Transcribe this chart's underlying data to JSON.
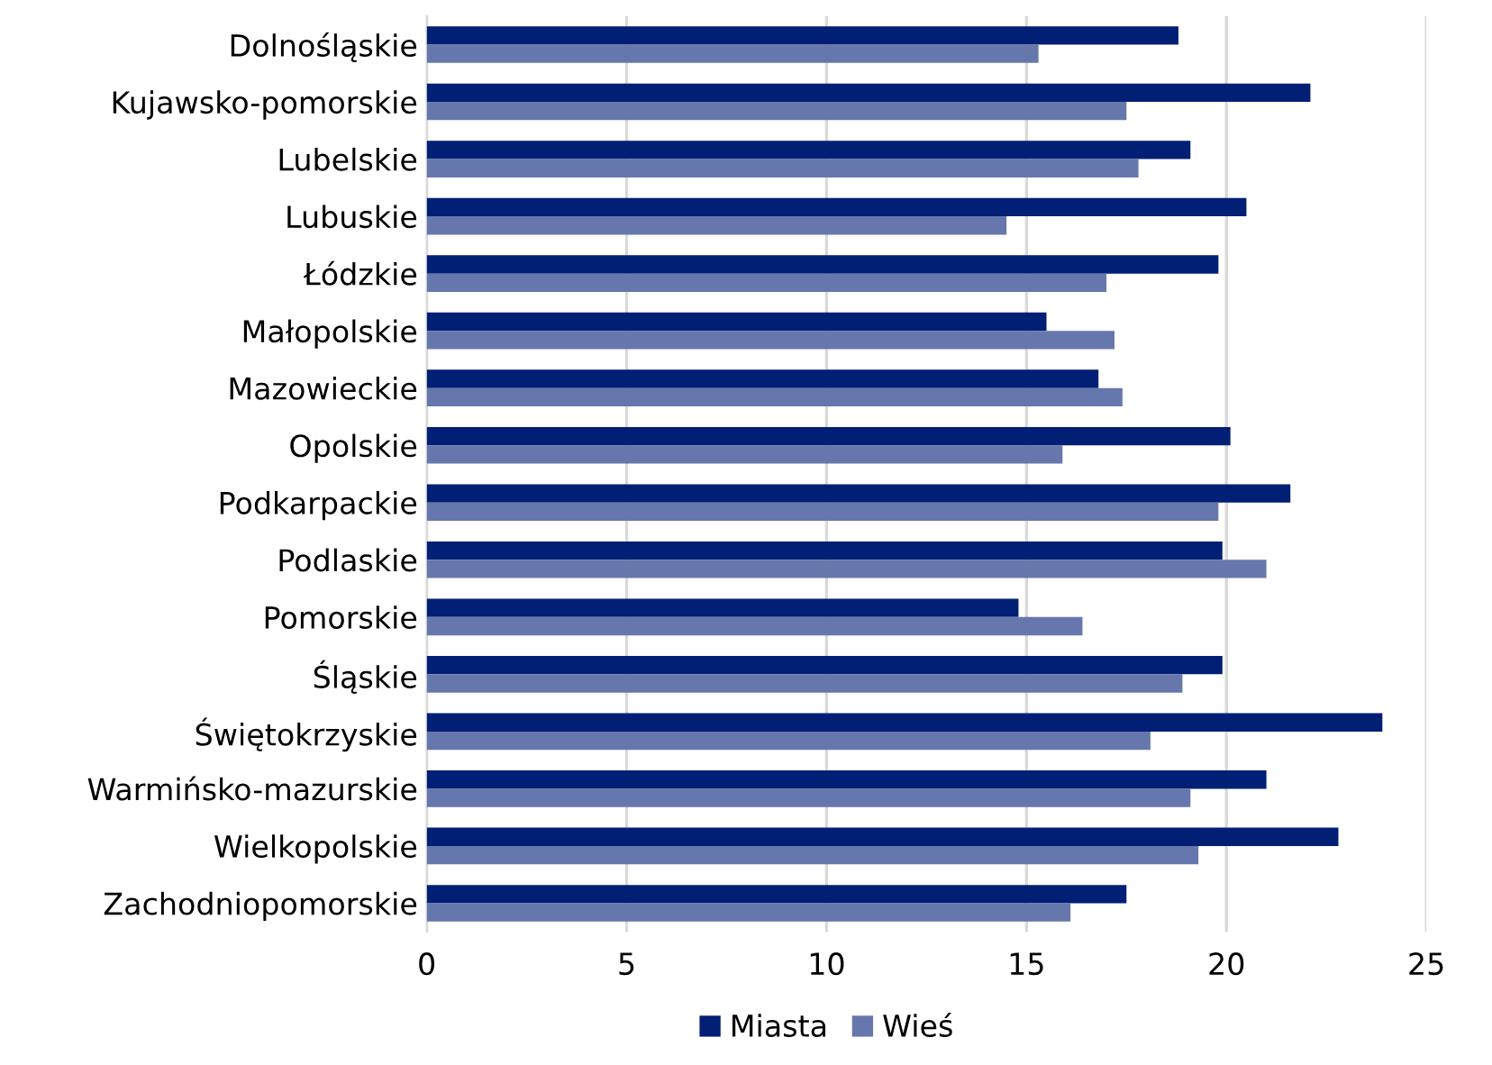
{
  "chart_data": {
    "type": "bar",
    "orientation": "horizontal",
    "categories": [
      "Dolnośląskie",
      "Kujawsko-pomorskie",
      "Lubelskie",
      "Lubuskie",
      "Łódzkie",
      "Małopolskie",
      "Mazowieckie",
      "Opolskie",
      "Podkarpackie",
      "Podlaskie",
      "Pomorskie",
      "Śląskie",
      "Świętokrzyskie",
      "Warmińsko-mazurskie",
      "Wielkopolskie",
      "Zachodniopomorskie"
    ],
    "series": [
      {
        "name": "Miasta",
        "color": "#001f75",
        "values": [
          18.8,
          22.1,
          19.1,
          20.5,
          19.8,
          15.5,
          16.8,
          20.1,
          21.6,
          19.9,
          14.8,
          19.9,
          23.9,
          21.0,
          22.8,
          17.5
        ]
      },
      {
        "name": "Wieś",
        "color": "#6677ad",
        "values": [
          15.3,
          17.5,
          17.8,
          14.5,
          17.0,
          17.2,
          17.4,
          15.9,
          19.8,
          21.0,
          16.4,
          18.9,
          18.1,
          19.1,
          19.3,
          16.1
        ]
      }
    ],
    "xlim": [
      0,
      25
    ],
    "xticks": [
      0,
      5,
      10,
      15,
      20,
      25
    ],
    "grid": "x",
    "legend": "bottom"
  }
}
